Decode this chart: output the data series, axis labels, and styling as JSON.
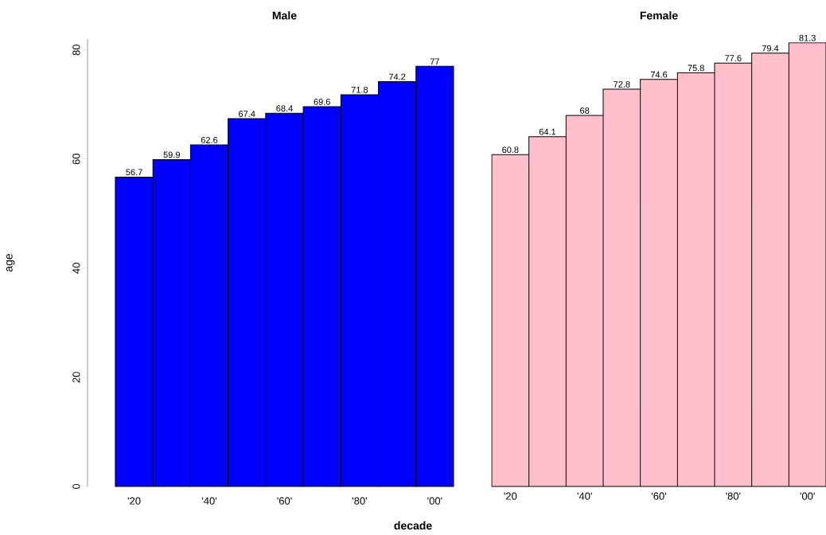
{
  "chart_data": [
    {
      "type": "bar",
      "title": "Male",
      "ylabel": "age",
      "xlabel": "decade",
      "categories": [
        "'20",
        null,
        "'40'",
        null,
        "'60'",
        null,
        "'80'",
        null,
        "'00'"
      ],
      "values": [
        56.7,
        59.9,
        62.6,
        67.4,
        68.4,
        69.6,
        71.8,
        74.2,
        77
      ],
      "color": "#0000ff",
      "data_labels": true,
      "ylim": [
        0,
        82
      ],
      "yticks": [
        0,
        20,
        40,
        60,
        80
      ]
    },
    {
      "type": "bar",
      "title": "Female",
      "categories": [
        "'20",
        null,
        "'40'",
        null,
        "'60'",
        null,
        "'80'",
        null,
        "'00'"
      ],
      "values": [
        60.8,
        64.1,
        68,
        72.8,
        74.6,
        75.8,
        77.6,
        79.4,
        81.3
      ],
      "color": "#ffc0cb",
      "data_labels": true,
      "tick_labels": "x"
    }
  ]
}
